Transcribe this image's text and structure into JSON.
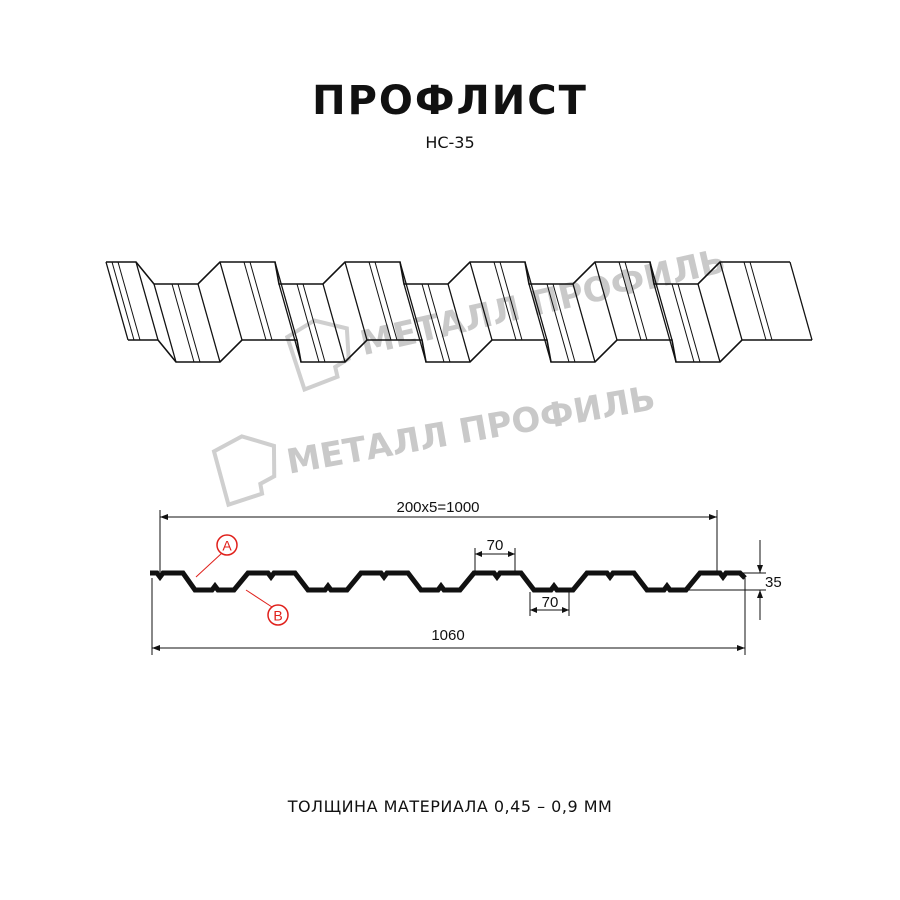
{
  "title": "ПРОФЛИСТ",
  "subtitle": "НС-35",
  "footer": "ТОЛЩИНА МАТЕРИАЛА 0,45 – 0,9 ММ",
  "watermark": {
    "text": "МЕТАЛЛ ПРОФИЛЬ",
    "color": "#c9c9c9"
  },
  "dimensions": {
    "pitch_total": "200x5=1000",
    "overall_width": "1060",
    "crest_width": "70",
    "trough_width": "70",
    "height": "35"
  },
  "markers": {
    "a": "A",
    "b": "B",
    "color": "#e0201b"
  },
  "colors": {
    "line": "#111111"
  }
}
